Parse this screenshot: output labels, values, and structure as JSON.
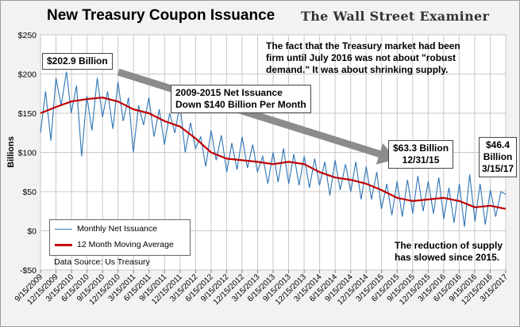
{
  "title": "New Treasury Coupon  Issuance",
  "brand": "The Wall Street Examiner",
  "annotations": {
    "peak_label": "$202.9 Billion",
    "net_issuance_line1": "2009-2015 Net Issuance",
    "net_issuance_line2": "Down $140 Billion Per Month",
    "commentary_line1": "The fact that the Treasury market had been",
    "commentary_line2": "firm until July 2016 was not about \"robust",
    "commentary_line3": "demand.\" It was about shrinking supply.",
    "dec2015_line1": "$63.3 Billion",
    "dec2015_line2": "12/31/15",
    "mar2017_line1": "$46.4",
    "mar2017_line2": "Billion",
    "mar2017_line3": "3/15/17",
    "reduction_line1": "The reduction of supply",
    "reduction_line2": "has slowed since 2015."
  },
  "legend": {
    "monthly": "Monthly Net Issuance",
    "moving_avg": "12 Month Moving Average"
  },
  "source": "Data Source: Us Treasury",
  "colors": {
    "monthly": "#2e75b6",
    "moving_avg": "#c00000",
    "arrow": "#8c8c8c",
    "plot_bg": "#ffffff",
    "grid": "#c8c8c8"
  },
  "chart_data": {
    "type": "line",
    "title": "New Treasury Coupon  Issuance",
    "ylabel": "Billions",
    "xlabel": "",
    "ylim": [
      -50,
      250
    ],
    "yticks": [
      -50,
      0,
      50,
      100,
      150,
      200,
      250
    ],
    "ytick_labels": [
      "-$50",
      "$0",
      "$50",
      "$100",
      "$150",
      "$200",
      "$250"
    ],
    "x_start": "2009-09-15",
    "x_end": "2017-03-15",
    "xtick_labels": [
      "9/15/2009",
      "12/15/2009",
      "3/15/2010",
      "6/15/2010",
      "9/15/2010",
      "12/15/2010",
      "3/15/2011",
      "6/15/2011",
      "9/15/2011",
      "12/15/2011",
      "3/15/2012",
      "6/15/2012",
      "9/15/2012",
      "12/15/2012",
      "3/15/2013",
      "6/15/2013",
      "9/15/2013",
      "12/15/2013",
      "3/15/2014",
      "6/15/2014",
      "9/15/2014",
      "12/15/2014",
      "3/15/2015",
      "6/15/2015",
      "9/15/2015",
      "12/15/2015",
      "3/15/2016",
      "6/15/2016",
      "9/15/2016",
      "12/15/2016",
      "3/15/2017"
    ],
    "grid": true,
    "legend_position": "bottom-left",
    "series": [
      {
        "name": "Monthly Net Issuance",
        "points": [
          [
            "2009-09-15",
            125
          ],
          [
            "2009-10-15",
            178
          ],
          [
            "2009-11-15",
            115
          ],
          [
            "2009-12-15",
            195
          ],
          [
            "2010-01-15",
            160
          ],
          [
            "2010-02-15",
            203
          ],
          [
            "2010-03-15",
            150
          ],
          [
            "2010-04-15",
            185
          ],
          [
            "2010-05-15",
            95
          ],
          [
            "2010-06-15",
            172
          ],
          [
            "2010-07-15",
            128
          ],
          [
            "2010-08-15",
            195
          ],
          [
            "2010-09-15",
            145
          ],
          [
            "2010-10-15",
            178
          ],
          [
            "2010-11-15",
            130
          ],
          [
            "2010-12-15",
            190
          ],
          [
            "2011-01-15",
            140
          ],
          [
            "2011-02-15",
            170
          ],
          [
            "2011-03-15",
            100
          ],
          [
            "2011-04-15",
            160
          ],
          [
            "2011-05-15",
            135
          ],
          [
            "2011-06-15",
            170
          ],
          [
            "2011-07-15",
            120
          ],
          [
            "2011-08-15",
            155
          ],
          [
            "2011-09-15",
            110
          ],
          [
            "2011-10-15",
            150
          ],
          [
            "2011-11-15",
            125
          ],
          [
            "2011-12-15",
            162
          ],
          [
            "2012-01-15",
            100
          ],
          [
            "2012-02-15",
            138
          ],
          [
            "2012-03-15",
            105
          ],
          [
            "2012-04-15",
            120
          ],
          [
            "2012-05-15",
            82
          ],
          [
            "2012-06-15",
            128
          ],
          [
            "2012-07-15",
            90
          ],
          [
            "2012-08-15",
            122
          ],
          [
            "2012-09-15",
            75
          ],
          [
            "2012-10-15",
            112
          ],
          [
            "2012-11-15",
            78
          ],
          [
            "2012-12-15",
            120
          ],
          [
            "2013-01-15",
            80
          ],
          [
            "2013-02-15",
            110
          ],
          [
            "2013-03-15",
            75
          ],
          [
            "2013-04-15",
            95
          ],
          [
            "2013-05-15",
            60
          ],
          [
            "2013-06-15",
            100
          ],
          [
            "2013-07-15",
            62
          ],
          [
            "2013-08-15",
            105
          ],
          [
            "2013-09-15",
            60
          ],
          [
            "2013-10-15",
            98
          ],
          [
            "2013-11-15",
            58
          ],
          [
            "2013-12-15",
            95
          ],
          [
            "2014-01-15",
            55
          ],
          [
            "2014-02-15",
            92
          ],
          [
            "2014-03-15",
            58
          ],
          [
            "2014-04-15",
            88
          ],
          [
            "2014-05-15",
            45
          ],
          [
            "2014-06-15",
            90
          ],
          [
            "2014-07-15",
            52
          ],
          [
            "2014-08-15",
            85
          ],
          [
            "2014-09-15",
            50
          ],
          [
            "2014-10-15",
            88
          ],
          [
            "2014-11-15",
            40
          ],
          [
            "2014-12-15",
            82
          ],
          [
            "2015-01-15",
            40
          ],
          [
            "2015-02-15",
            75
          ],
          [
            "2015-03-15",
            28
          ],
          [
            "2015-04-15",
            60
          ],
          [
            "2015-05-15",
            20
          ],
          [
            "2015-06-15",
            63
          ],
          [
            "2015-07-15",
            18
          ],
          [
            "2015-08-15",
            65
          ],
          [
            "2015-09-15",
            22
          ],
          [
            "2015-10-15",
            70
          ],
          [
            "2015-11-15",
            25
          ],
          [
            "2015-12-15",
            63.3
          ],
          [
            "2016-01-15",
            22
          ],
          [
            "2016-02-15",
            68
          ],
          [
            "2016-03-15",
            15
          ],
          [
            "2016-04-15",
            55
          ],
          [
            "2016-05-15",
            10
          ],
          [
            "2016-06-15",
            60
          ],
          [
            "2016-07-15",
            5
          ],
          [
            "2016-08-15",
            72
          ],
          [
            "2016-09-15",
            12
          ],
          [
            "2016-10-15",
            60
          ],
          [
            "2016-11-15",
            8
          ],
          [
            "2016-12-15",
            52
          ],
          [
            "2017-01-15",
            18
          ],
          [
            "2017-02-15",
            50
          ],
          [
            "2017-03-15",
            46.4
          ]
        ]
      },
      {
        "name": "12 Month Moving Average",
        "points": [
          [
            "2009-09-15",
            150
          ],
          [
            "2009-12-15",
            158
          ],
          [
            "2010-03-15",
            165
          ],
          [
            "2010-06-15",
            168
          ],
          [
            "2010-09-15",
            170
          ],
          [
            "2010-12-15",
            165
          ],
          [
            "2011-03-15",
            155
          ],
          [
            "2011-06-15",
            150
          ],
          [
            "2011-09-15",
            140
          ],
          [
            "2011-12-15",
            133
          ],
          [
            "2012-03-15",
            118
          ],
          [
            "2012-06-15",
            100
          ],
          [
            "2012-09-15",
            92
          ],
          [
            "2012-12-15",
            90
          ],
          [
            "2013-03-15",
            88
          ],
          [
            "2013-06-15",
            85
          ],
          [
            "2013-09-15",
            88
          ],
          [
            "2013-12-15",
            85
          ],
          [
            "2014-03-15",
            75
          ],
          [
            "2014-06-15",
            68
          ],
          [
            "2014-09-15",
            65
          ],
          [
            "2014-12-15",
            60
          ],
          [
            "2015-03-15",
            52
          ],
          [
            "2015-06-15",
            42
          ],
          [
            "2015-09-15",
            38
          ],
          [
            "2015-12-15",
            40
          ],
          [
            "2016-03-15",
            42
          ],
          [
            "2016-06-15",
            38
          ],
          [
            "2016-09-15",
            30
          ],
          [
            "2016-12-15",
            32
          ],
          [
            "2017-03-15",
            28
          ]
        ]
      }
    ]
  }
}
